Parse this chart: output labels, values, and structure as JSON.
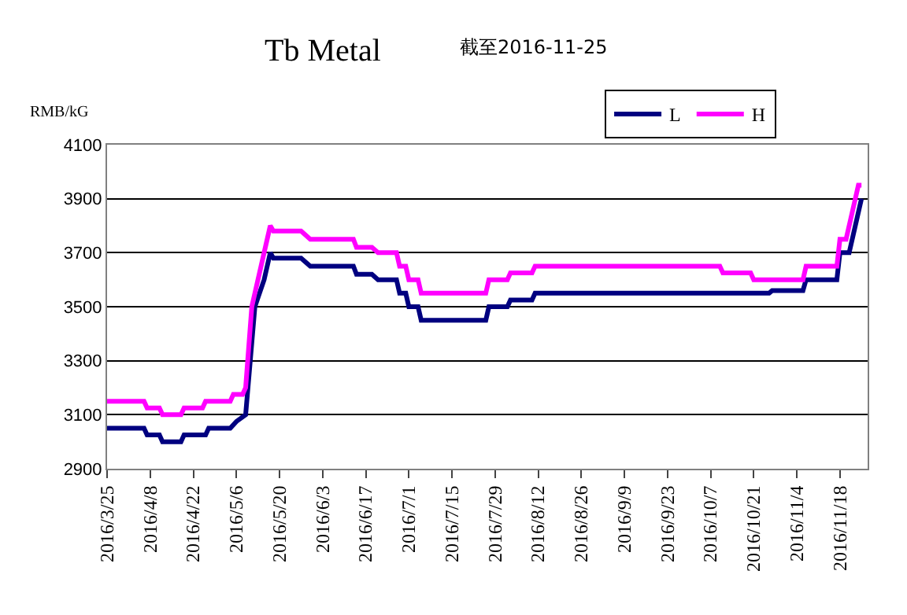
{
  "chart_data": {
    "type": "line",
    "title": "Tb Metal",
    "subtitle": "截至2016-11-25",
    "ylabel": "RMB/kG",
    "xlim": [
      "2016-03-25",
      "2016-11-27"
    ],
    "xticks": [
      {
        "value": "2016-03-25",
        "label": "2016/3/25"
      },
      {
        "value": "2016-04-08",
        "label": "2016/4/8"
      },
      {
        "value": "2016-04-22",
        "label": "2016/4/22"
      },
      {
        "value": "2016-05-06",
        "label": "2016/5/6"
      },
      {
        "value": "2016-05-20",
        "label": "2016/5/20"
      },
      {
        "value": "2016-06-03",
        "label": "2016/6/3"
      },
      {
        "value": "2016-06-17",
        "label": "2016/6/17"
      },
      {
        "value": "2016-07-01",
        "label": "2016/7/1"
      },
      {
        "value": "2016-07-15",
        "label": "2016/7/15"
      },
      {
        "value": "2016-07-29",
        "label": "2016/7/29"
      },
      {
        "value": "2016-08-12",
        "label": "2016/8/12"
      },
      {
        "value": "2016-08-26",
        "label": "2016/8/26"
      },
      {
        "value": "2016-09-09",
        "label": "2016/9/9"
      },
      {
        "value": "2016-09-23",
        "label": "2016/9/23"
      },
      {
        "value": "2016-10-07",
        "label": "2016/10/7"
      },
      {
        "value": "2016-10-21",
        "label": "2016/10/21"
      },
      {
        "value": "2016-11-04",
        "label": "2016/11/4"
      },
      {
        "value": "2016-11-18",
        "label": "2016/11/18"
      }
    ],
    "ylim": [
      2900,
      4100
    ],
    "yticks": [
      2900,
      3100,
      3300,
      3500,
      3700,
      3900,
      4100
    ],
    "grid": "y",
    "legend": "top right",
    "marker": "none",
    "line_style": "solid",
    "series": [
      {
        "name": "L",
        "color": "#000080",
        "x": [
          "2016-03-25",
          "2016-04-06",
          "2016-04-07",
          "2016-04-11",
          "2016-04-12",
          "2016-04-18",
          "2016-04-19",
          "2016-04-26",
          "2016-04-27",
          "2016-05-04",
          "2016-05-06",
          "2016-05-09",
          "2016-05-12",
          "2016-05-15",
          "2016-05-17",
          "2016-05-18",
          "2016-05-27",
          "2016-05-30",
          "2016-06-13",
          "2016-06-14",
          "2016-06-19",
          "2016-06-21",
          "2016-06-27",
          "2016-06-28",
          "2016-06-30",
          "2016-07-01",
          "2016-07-04",
          "2016-07-05",
          "2016-07-26",
          "2016-07-27",
          "2016-08-02",
          "2016-08-03",
          "2016-08-10",
          "2016-08-11",
          "2016-10-26",
          "2016-10-27",
          "2016-11-06",
          "2016-11-07",
          "2016-11-17",
          "2016-11-18",
          "2016-11-21",
          "2016-11-23",
          "2016-11-25"
        ],
        "values": [
          3050,
          3050,
          3025,
          3025,
          3000,
          3000,
          3025,
          3025,
          3050,
          3050,
          3075,
          3100,
          3500,
          3600,
          3700,
          3680,
          3680,
          3650,
          3650,
          3620,
          3620,
          3600,
          3600,
          3550,
          3550,
          3500,
          3500,
          3450,
          3450,
          3500,
          3500,
          3525,
          3525,
          3550,
          3550,
          3560,
          3560,
          3600,
          3600,
          3700,
          3700,
          3800,
          3900
        ]
      },
      {
        "name": "H",
        "color": "#ff00ff",
        "x": [
          "2016-03-25",
          "2016-04-06",
          "2016-04-07",
          "2016-04-11",
          "2016-04-12",
          "2016-04-18",
          "2016-04-19",
          "2016-04-25",
          "2016-04-26",
          "2016-05-04",
          "2016-05-05",
          "2016-05-08",
          "2016-05-09",
          "2016-05-11",
          "2016-05-14",
          "2016-05-17",
          "2016-05-18",
          "2016-05-27",
          "2016-05-30",
          "2016-06-13",
          "2016-06-14",
          "2016-06-19",
          "2016-06-21",
          "2016-06-27",
          "2016-06-28",
          "2016-06-30",
          "2016-07-01",
          "2016-07-04",
          "2016-07-05",
          "2016-07-26",
          "2016-07-27",
          "2016-08-02",
          "2016-08-03",
          "2016-08-10",
          "2016-08-11",
          "2016-10-10",
          "2016-10-11",
          "2016-10-20",
          "2016-10-21",
          "2016-11-06",
          "2016-11-07",
          "2016-11-17",
          "2016-11-18",
          "2016-11-20",
          "2016-11-22",
          "2016-11-24",
          "2016-11-25"
        ],
        "values": [
          3150,
          3150,
          3125,
          3125,
          3100,
          3100,
          3125,
          3125,
          3150,
          3150,
          3175,
          3175,
          3200,
          3500,
          3650,
          3800,
          3780,
          3780,
          3750,
          3750,
          3720,
          3720,
          3700,
          3700,
          3650,
          3650,
          3600,
          3600,
          3550,
          3550,
          3600,
          3600,
          3625,
          3625,
          3650,
          3650,
          3625,
          3625,
          3600,
          3600,
          3650,
          3650,
          3750,
          3750,
          3850,
          3950,
          3950
        ]
      }
    ]
  }
}
